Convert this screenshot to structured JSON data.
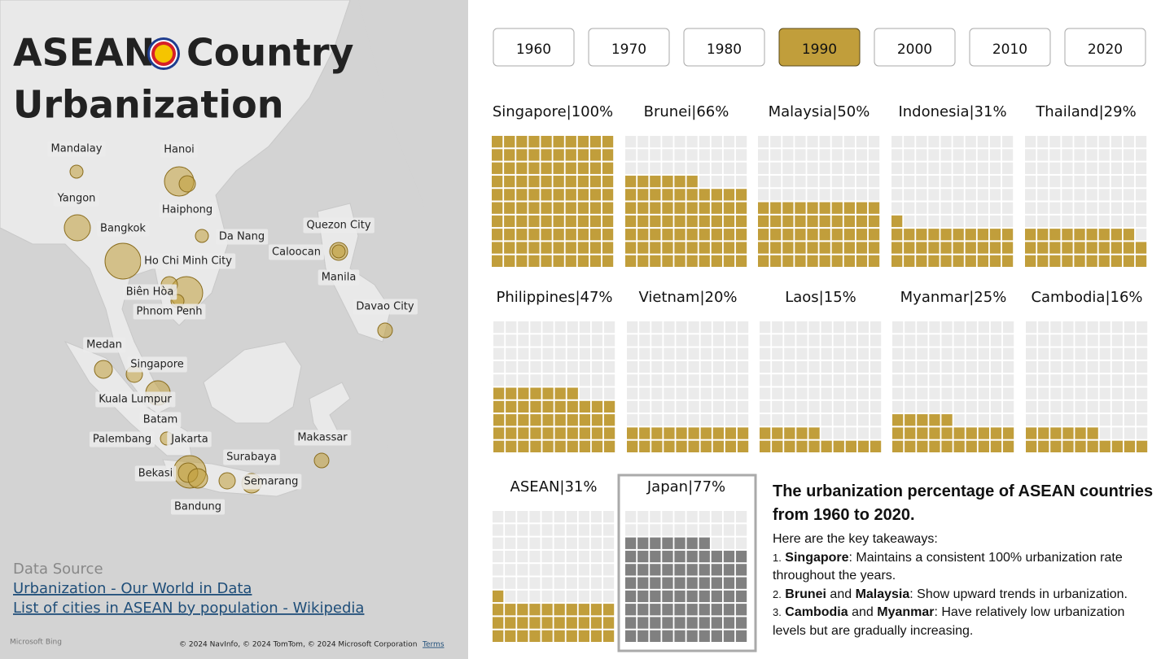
{
  "title_start": "ASEAN",
  "title_end": [
    "Country",
    "Urbanization"
  ],
  "map": {
    "cities": [
      "Mandalay",
      "Hanoi",
      "Yangon",
      "Haiphong",
      "Bangkok",
      "Da Nang",
      "Quezon City",
      "Caloocan",
      "Ho Chi Minh City",
      "Manila",
      "Biên Hòa",
      "Phnom Penh",
      "Davao City",
      "Medan",
      "Singapore",
      "Kuala Lumpur",
      "Batam",
      "Palembang",
      "Jakarta",
      "Makassar",
      "Surabaya",
      "Bekasi",
      "Semarang",
      "Bandung"
    ],
    "source_label": "Data Source",
    "links": [
      "Urbanization - Our World in Data",
      "List of cities in ASEAN by population - Wikipedia"
    ],
    "bing": "Microsoft Bing",
    "attribution": "© 2024 NavInfo, © 2024 TomTom, © 2024 Microsoft Corporation",
    "terms": "Terms"
  },
  "years": [
    {
      "label": "1960",
      "selected": false
    },
    {
      "label": "1970",
      "selected": false
    },
    {
      "label": "1980",
      "selected": false
    },
    {
      "label": "1990",
      "selected": true
    },
    {
      "label": "2000",
      "selected": false
    },
    {
      "label": "2010",
      "selected": false
    },
    {
      "label": "2020",
      "selected": false
    }
  ],
  "chart_data": [
    {
      "type": "waffle",
      "title": "Singapore|100%",
      "value": 100,
      "color": "#c19e3b"
    },
    {
      "type": "waffle",
      "title": "Brunei|66%",
      "value": 66,
      "color": "#c19e3b"
    },
    {
      "type": "waffle",
      "title": "Malaysia|50%",
      "value": 50,
      "color": "#c19e3b"
    },
    {
      "type": "waffle",
      "title": "Indonesia|31%",
      "value": 31,
      "color": "#c19e3b"
    },
    {
      "type": "waffle",
      "title": "Thailand|29%",
      "value": 29,
      "color": "#c19e3b"
    },
    {
      "type": "waffle",
      "title": "Philippines|47%",
      "value": 47,
      "color": "#c19e3b"
    },
    {
      "type": "waffle",
      "title": "Vietnam|20%",
      "value": 20,
      "color": "#c19e3b"
    },
    {
      "type": "waffle",
      "title": "Laos|15%",
      "value": 15,
      "color": "#c19e3b"
    },
    {
      "type": "waffle",
      "title": "Myanmar|25%",
      "value": 25,
      "color": "#c19e3b"
    },
    {
      "type": "waffle",
      "title": "Cambodia|16%",
      "value": 16,
      "color": "#c19e3b"
    },
    {
      "type": "waffle",
      "title": "ASEAN|31%",
      "value": 31,
      "color": "#c19e3b"
    },
    {
      "type": "waffle",
      "title": "Japan|77%",
      "value": 77,
      "color": "#808080",
      "highlight": true
    }
  ],
  "summary": {
    "heading": "The urbanization percentage of ASEAN countries from 1960 to 2020.",
    "intro": "Here are the key takeaways:",
    "items": [
      {
        "number": "1.",
        "parts": [
          {
            "text": "Singapore",
            "bold": true
          },
          {
            "text": ": Maintains a consistent 100% urbanization rate throughout the years.",
            "bold": false
          }
        ]
      },
      {
        "number": "2.",
        "parts": [
          {
            "text": "Brunei",
            "bold": true
          },
          {
            "text": " and ",
            "bold": false
          },
          {
            "text": "Malaysia",
            "bold": true
          },
          {
            "text": ": Show upward trends in urbanization.",
            "bold": false
          }
        ]
      },
      {
        "number": "3.",
        "parts": [
          {
            "text": "Cambodia",
            "bold": true
          },
          {
            "text": " and ",
            "bold": false
          },
          {
            "text": "Myanmar",
            "bold": true
          },
          {
            "text": ": Have relatively low urbanization levels but are gradually increasing.",
            "bold": false
          }
        ]
      }
    ]
  }
}
